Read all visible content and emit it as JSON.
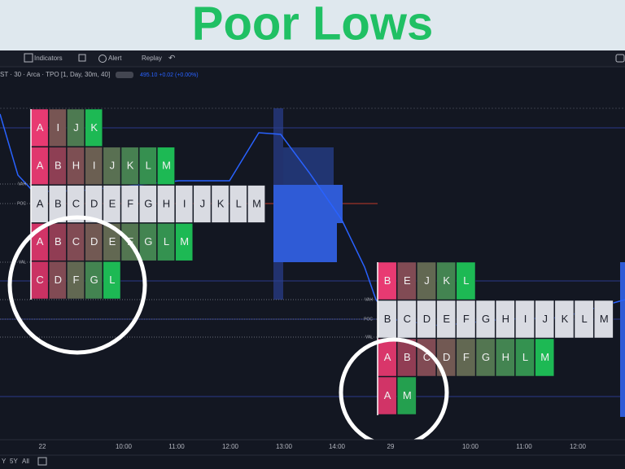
{
  "header": {
    "title": "Poor Lows"
  },
  "toolbar": {
    "items": [
      "Indicators",
      "Alert",
      "Replay"
    ]
  },
  "legend": {
    "symbol": "ST · 30 · Arca · TPO [1, Day, 30m, 40]",
    "price": "495.10 +0.02 (+0.00%)"
  },
  "profiles": [
    {
      "markers": [
        "VAH",
        "POC",
        "VAL"
      ],
      "rows": [
        {
          "letters": [
            "A",
            "I",
            "J",
            "K"
          ]
        },
        {
          "letters": [
            "A",
            "B",
            "H",
            "I",
            "J",
            "K",
            "L",
            "M"
          ]
        },
        {
          "letters": [
            "A",
            "B",
            "C",
            "D",
            "E",
            "F",
            "G",
            "H",
            "I",
            "J",
            "K",
            "L",
            "M"
          ],
          "fill": "#d9dbe2"
        },
        {
          "letters": [
            "A",
            "B",
            "C",
            "D",
            "E",
            "F",
            "G",
            "L",
            "M"
          ]
        },
        {
          "letters": [
            "C",
            "D",
            "F",
            "G",
            "L"
          ]
        }
      ]
    },
    {
      "markers": [
        "VAH",
        "POC",
        "VAL"
      ],
      "rows": [
        {
          "letters": [
            "B",
            "E",
            "J",
            "K",
            "L"
          ]
        },
        {
          "letters": [
            "B",
            "C",
            "D",
            "E",
            "F",
            "G",
            "H",
            "I",
            "J",
            "K",
            "L",
            "M"
          ],
          "fill": "#d9dbe2"
        },
        {
          "letters": [
            "A",
            "B",
            "C",
            "D",
            "F",
            "G",
            "H",
            "L",
            "M"
          ]
        },
        {
          "letters": [
            "A",
            "M"
          ]
        }
      ]
    }
  ],
  "time_axis": [
    "22",
    "10:00",
    "11:00",
    "12:00",
    "13:00",
    "14:00",
    "29",
    "10:00",
    "11:00",
    "12:00"
  ],
  "ranges": [
    "Y",
    "5Y",
    "All"
  ]
}
